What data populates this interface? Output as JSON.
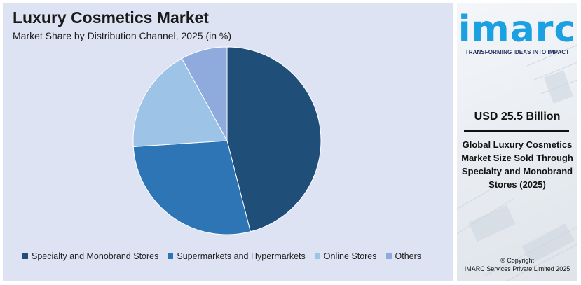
{
  "chart_data": {
    "type": "pie",
    "title": "Luxury Cosmetics Market",
    "subtitle": "Market Share by Distribution Channel, 2025 (in %)",
    "categories": [
      "Specialty and Monobrand Stores",
      "Supermarkets and Hypermarkets",
      "Online Stores",
      "Others"
    ],
    "values": [
      46,
      28,
      18,
      8
    ],
    "colors": [
      "#1f4e79",
      "#2e75b6",
      "#9dc3e6",
      "#8faadc"
    ],
    "legend_position": "bottom"
  },
  "brand": {
    "logo": "imarc",
    "tagline": "TRANSFORMING IDEAS INTO IMPACT",
    "logo_color": "#1ba0e2"
  },
  "highlight": {
    "value": "USD 25.5 Billion",
    "caption": "Global Luxury Cosmetics Market Size Sold Through Specialty and Monobrand Stores (2025)"
  },
  "footer": {
    "copyright_line1": "© Copyright",
    "copyright_line2": "IMARC Services Private Limited 2025"
  }
}
